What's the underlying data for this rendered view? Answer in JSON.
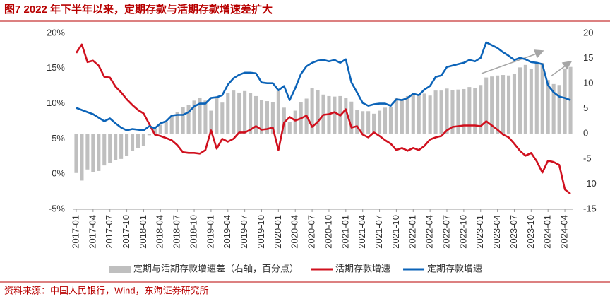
{
  "chart_data": {
    "type": "bar-line",
    "title": "图7  2022 年下半年以来，定期存款与活期存款增速差扩大",
    "source": "资料来源：中国人民银行，Wind，东海证券研究所",
    "categories": [
      "2017-01",
      null,
      null,
      "2017-04",
      null,
      null,
      "2017-07",
      null,
      null,
      "2017-10",
      null,
      null,
      "2018-01",
      null,
      null,
      "2018-04",
      null,
      null,
      "2018-07",
      null,
      null,
      "2018-10",
      null,
      null,
      "2019-01",
      null,
      null,
      "2019-04",
      null,
      null,
      "2019-07",
      null,
      null,
      "2019-10",
      null,
      null,
      "2020-01",
      null,
      null,
      "2020-04",
      null,
      null,
      "2020-07",
      null,
      null,
      "2020-10",
      null,
      null,
      "2021-01",
      null,
      null,
      "2021-04",
      null,
      null,
      "2021-07",
      null,
      null,
      "2021-10",
      null,
      null,
      "2022-01",
      null,
      null,
      "2022-04",
      null,
      null,
      "2022-07",
      null,
      null,
      "2022-10",
      null,
      null,
      "2023-01",
      null,
      null,
      "2023-04",
      null,
      null,
      "2023-07",
      null,
      null,
      "2023-10",
      null,
      null,
      "2024-01",
      null,
      null,
      "2024-04",
      null
    ],
    "series": [
      {
        "name": "定期与活期存款增速差（右轴，百分点）",
        "color": "#bfbfbf",
        "axis": "y2",
        "kind": "bar",
        "values": [
          -7.8,
          -9.3,
          -7.1,
          -7.6,
          -7.4,
          -6.3,
          -5.8,
          -5.2,
          -5.0,
          -4.4,
          -3.4,
          -2.8,
          -2.4,
          -0.3,
          0.9,
          1.8,
          2.4,
          3.5,
          4.3,
          5.3,
          5.8,
          6.6,
          7.1,
          6.6,
          4.6,
          7.3,
          6.2,
          8.1,
          8.6,
          8.2,
          8.5,
          8.1,
          7.5,
          6.7,
          6.5,
          6.3,
          8.5,
          5.2,
          2.4,
          4.6,
          6.3,
          7.0,
          9.1,
          8.7,
          7.8,
          7.5,
          7.4,
          7.5,
          7.1,
          6.4,
          4.8,
          4.5,
          4.5,
          4.0,
          4.6,
          5.2,
          5.4,
          7.2,
          6.8,
          7.5,
          7.7,
          7.8,
          8.0,
          7.6,
          8.6,
          8.6,
          9.0,
          8.7,
          8.8,
          8.9,
          9.3,
          9.1,
          9.7,
          11.2,
          11.4,
          11.6,
          11.7,
          11.6,
          11.9,
          13.2,
          13.7,
          12.9,
          14.0,
          14.1,
          10.7,
          9.9,
          9.7,
          13.0,
          13.3
        ]
      },
      {
        "name": "活期存款增速",
        "color": "#d0101e",
        "kind": "line",
        "values": [
          17.2,
          18.4,
          15.9,
          16.1,
          15.4,
          13.8,
          13.7,
          12.4,
          11.6,
          10.6,
          9.8,
          9.1,
          8.6,
          7.1,
          5.6,
          5.4,
          5.1,
          4.8,
          4.1,
          3.1,
          3.0,
          3.0,
          2.9,
          3.4,
          6.2,
          3.6,
          5.0,
          4.6,
          5.0,
          5.9,
          5.9,
          6.3,
          6.8,
          6.3,
          6.4,
          6.6,
          3.4,
          7.3,
          8.1,
          7.6,
          7.9,
          8.3,
          6.7,
          7.4,
          8.4,
          8.5,
          8.8,
          8.3,
          9.2,
          6.6,
          6.8,
          5.6,
          5.2,
          5.9,
          5.4,
          4.8,
          4.3,
          3.4,
          3.7,
          3.3,
          3.7,
          3.4,
          4.0,
          4.9,
          5.2,
          5.4,
          6.2,
          6.7,
          6.8,
          6.9,
          6.9,
          6.9,
          6.8,
          7.5,
          6.9,
          6.3,
          5.6,
          5.2,
          4.3,
          3.3,
          2.6,
          3.0,
          1.8,
          0.2,
          1.9,
          1.7,
          1.3,
          -2.2,
          -2.8
        ]
      },
      {
        "name": "定期存款增速",
        "color": "#0b63b8",
        "kind": "line",
        "values": [
          9.4,
          9.1,
          8.8,
          8.5,
          8.0,
          7.5,
          7.9,
          7.2,
          6.6,
          6.2,
          6.4,
          6.3,
          6.2,
          6.8,
          6.5,
          7.2,
          7.5,
          8.3,
          8.4,
          8.4,
          8.8,
          9.6,
          10.0,
          10.0,
          10.8,
          10.9,
          11.2,
          12.7,
          13.6,
          14.1,
          14.4,
          14.4,
          14.3,
          13.0,
          12.9,
          12.9,
          11.9,
          12.5,
          10.5,
          12.2,
          14.2,
          15.3,
          15.8,
          16.1,
          16.2,
          16.0,
          16.2,
          15.8,
          16.3,
          13.0,
          11.6,
          10.1,
          9.7,
          9.9,
          10.0,
          10.0,
          9.7,
          10.6,
          10.5,
          10.8,
          11.4,
          11.2,
          12.0,
          12.5,
          13.8,
          14.0,
          15.2,
          15.4,
          15.6,
          15.8,
          16.2,
          16.0,
          16.5,
          18.7,
          18.3,
          17.9,
          17.3,
          16.8,
          16.2,
          16.5,
          16.3,
          15.9,
          15.8,
          15.6,
          12.6,
          11.6,
          11.0,
          10.8,
          10.5
        ]
      }
    ],
    "ylim": [
      -5,
      20
    ],
    "yticks": [
      {
        "value": 20,
        "label": "20%"
      },
      {
        "value": 15,
        "label": "15%"
      },
      {
        "value": 10,
        "label": "10%"
      },
      {
        "value": 5,
        "label": "5%"
      },
      {
        "value": 0,
        "label": "0%"
      },
      {
        "value": -5,
        "label": "-5%"
      }
    ],
    "y2lim": [
      -15,
      20
    ],
    "y2ticks": [
      20,
      15,
      10,
      5,
      0,
      -5,
      -10,
      -15
    ]
  }
}
